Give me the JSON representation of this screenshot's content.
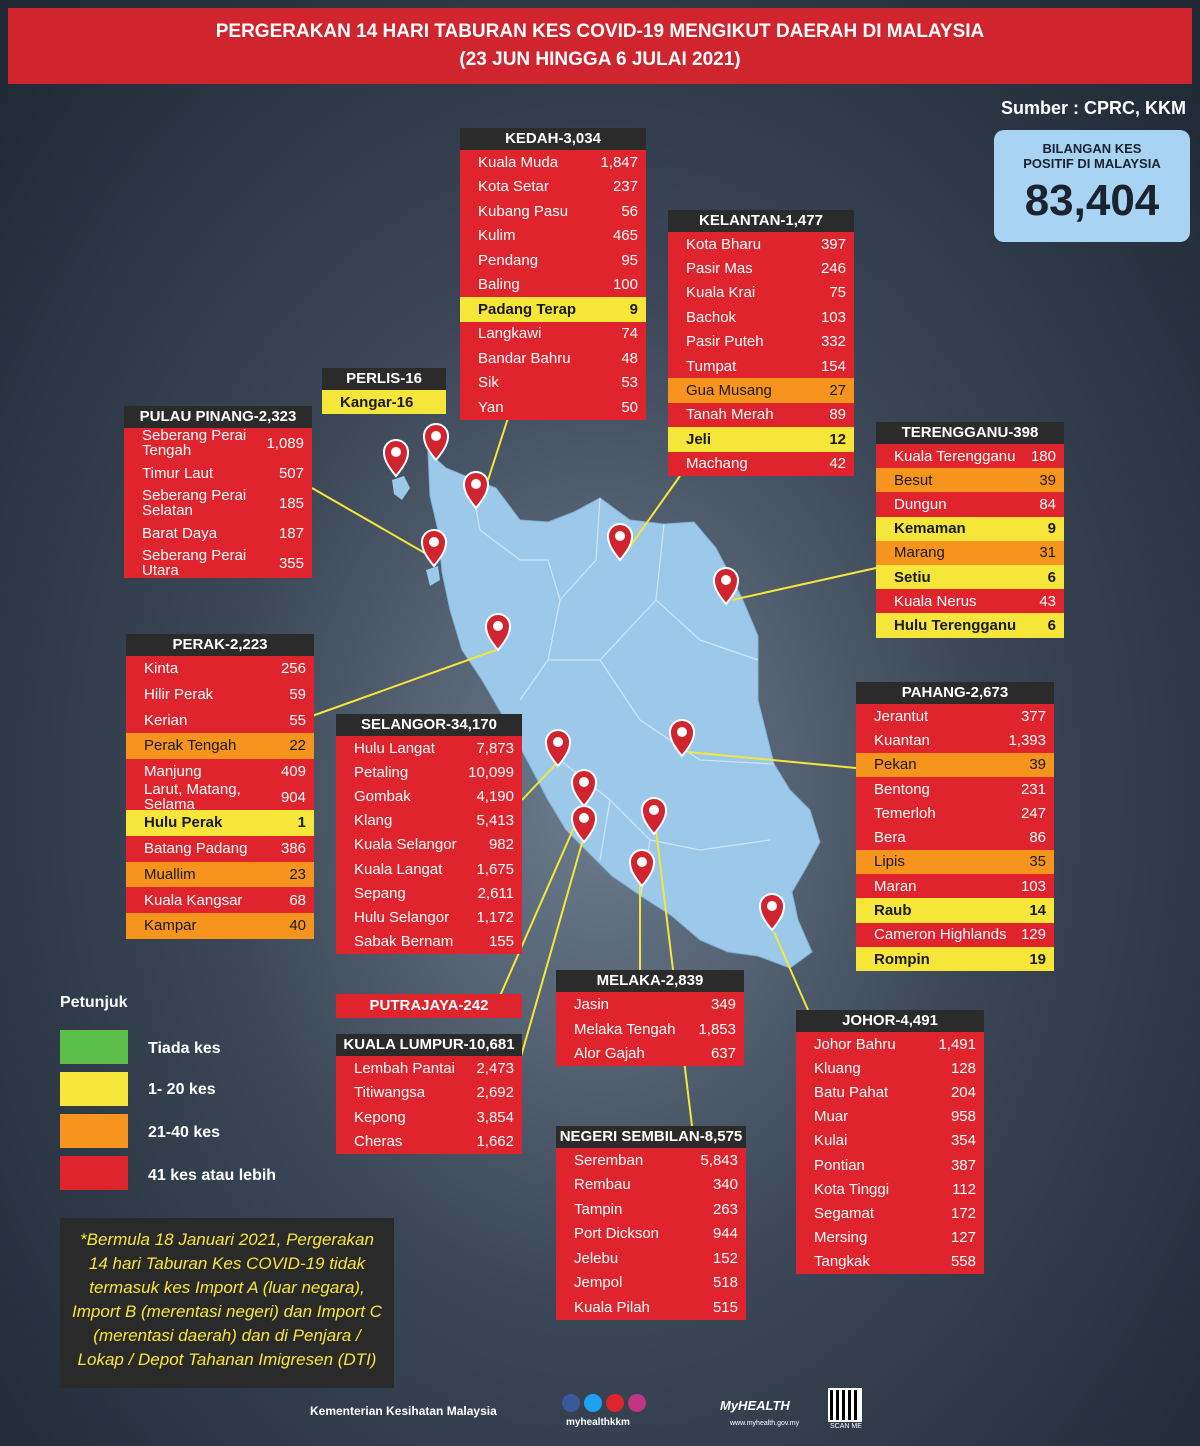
{
  "header": {
    "line1": "PERGERAKAN 14 HARI TABURAN KES COVID-19 MENGIKUT DAERAH DI MALAYSIA",
    "line2": "(23 JUN HINGGA 6 JULAI 2021)"
  },
  "source": "Sumber : CPRC, KKM",
  "total": {
    "label1": "BILANGAN KES",
    "label2": "POSITIF DI MALAYSIA",
    "value": "83,404"
  },
  "colors": {
    "red": "#e0242d",
    "yellow": "#f6e63a",
    "orange": "#f7941e",
    "green": "#5cbf4a",
    "map": "#9cc9ea",
    "header": "#d0242e"
  },
  "states": {
    "kedah": {
      "title": "KEDAH-3,034",
      "rows": [
        {
          "name": "Kuala Muda",
          "value": "1,847",
          "level": "red"
        },
        {
          "name": "Kota Setar",
          "value": "237",
          "level": "red"
        },
        {
          "name": "Kubang Pasu",
          "value": "56",
          "level": "red"
        },
        {
          "name": "Kulim",
          "value": "465",
          "level": "red"
        },
        {
          "name": "Pendang",
          "value": "95",
          "level": "red"
        },
        {
          "name": "Baling",
          "value": "100",
          "level": "red"
        },
        {
          "name": "Padang Terap",
          "value": "9",
          "level": "yellow"
        },
        {
          "name": "Langkawi",
          "value": "74",
          "level": "red"
        },
        {
          "name": "Bandar Bahru",
          "value": "48",
          "level": "red"
        },
        {
          "name": "Sik",
          "value": "53",
          "level": "red"
        },
        {
          "name": "Yan",
          "value": "50",
          "level": "red"
        }
      ]
    },
    "kelantan": {
      "title": "KELANTAN-1,477",
      "rows": [
        {
          "name": "Kota Bharu",
          "value": "397",
          "level": "red"
        },
        {
          "name": "Pasir Mas",
          "value": "246",
          "level": "red"
        },
        {
          "name": "Kuala Krai",
          "value": "75",
          "level": "red"
        },
        {
          "name": "Bachok",
          "value": "103",
          "level": "red"
        },
        {
          "name": "Pasir Puteh",
          "value": "332",
          "level": "red"
        },
        {
          "name": "Tumpat",
          "value": "154",
          "level": "red"
        },
        {
          "name": "Gua Musang",
          "value": "27",
          "level": "orange"
        },
        {
          "name": "Tanah Merah",
          "value": "89",
          "level": "red"
        },
        {
          "name": "Jeli",
          "value": "12",
          "level": "yellow"
        },
        {
          "name": "Machang",
          "value": "42",
          "level": "red"
        }
      ]
    },
    "perlis": {
      "title": "PERLIS-16",
      "rows": [
        {
          "name": "Kangar-16",
          "value": "",
          "level": "yellow"
        }
      ]
    },
    "penang": {
      "title": "PULAU PINANG-2,323",
      "rows": [
        {
          "name": "Seberang Perai Tengah",
          "value": "1,089",
          "level": "red"
        },
        {
          "name": "Timur Laut",
          "value": "507",
          "level": "red"
        },
        {
          "name": "Seberang Perai Selatan",
          "value": "185",
          "level": "red"
        },
        {
          "name": "Barat Daya",
          "value": "187",
          "level": "red"
        },
        {
          "name": "Seberang Perai Utara",
          "value": "355",
          "level": "red"
        }
      ]
    },
    "terengganu": {
      "title": "TERENGGANU-398",
      "rows": [
        {
          "name": "Kuala Terengganu",
          "value": "180",
          "level": "red"
        },
        {
          "name": "Besut",
          "value": "39",
          "level": "orange"
        },
        {
          "name": "Dungun",
          "value": "84",
          "level": "red"
        },
        {
          "name": "Kemaman",
          "value": "9",
          "level": "yellow"
        },
        {
          "name": "Marang",
          "value": "31",
          "level": "orange"
        },
        {
          "name": "Setiu",
          "value": "6",
          "level": "yellow"
        },
        {
          "name": "Kuala Nerus",
          "value": "43",
          "level": "red"
        },
        {
          "name": "Hulu Terengganu",
          "value": "6",
          "level": "yellow"
        }
      ]
    },
    "perak": {
      "title": "PERAK-2,223",
      "rows": [
        {
          "name": "Kinta",
          "value": "256",
          "level": "red"
        },
        {
          "name": "Hilir Perak",
          "value": "59",
          "level": "red"
        },
        {
          "name": "Kerian",
          "value": "55",
          "level": "red"
        },
        {
          "name": "Perak Tengah",
          "value": "22",
          "level": "orange"
        },
        {
          "name": "Manjung",
          "value": "409",
          "level": "red"
        },
        {
          "name": "Larut, Matang, Selama",
          "value": "904",
          "level": "red"
        },
        {
          "name": "Hulu Perak",
          "value": "1",
          "level": "yellow"
        },
        {
          "name": "Batang Padang",
          "value": "386",
          "level": "red"
        },
        {
          "name": "Muallim",
          "value": "23",
          "level": "orange"
        },
        {
          "name": "Kuala Kangsar",
          "value": "68",
          "level": "red"
        },
        {
          "name": "Kampar",
          "value": "40",
          "level": "orange"
        }
      ]
    },
    "selangor": {
      "title": "SELANGOR-34,170",
      "rows": [
        {
          "name": "Hulu Langat",
          "value": "7,873",
          "level": "red"
        },
        {
          "name": "Petaling",
          "value": "10,099",
          "level": "red"
        },
        {
          "name": "Gombak",
          "value": "4,190",
          "level": "red"
        },
        {
          "name": "Klang",
          "value": "5,413",
          "level": "red"
        },
        {
          "name": "Kuala Selangor",
          "value": "982",
          "level": "red"
        },
        {
          "name": "Kuala Langat",
          "value": "1,675",
          "level": "red"
        },
        {
          "name": "Sepang",
          "value": "2,611",
          "level": "red"
        },
        {
          "name": "Hulu Selangor",
          "value": "1,172",
          "level": "red"
        },
        {
          "name": "Sabak Bernam",
          "value": "155",
          "level": "red"
        }
      ]
    },
    "pahang": {
      "title": "PAHANG-2,673",
      "rows": [
        {
          "name": "Jerantut",
          "value": "377",
          "level": "red"
        },
        {
          "name": "Kuantan",
          "value": "1,393",
          "level": "red"
        },
        {
          "name": "Pekan",
          "value": "39",
          "level": "orange"
        },
        {
          "name": "Bentong",
          "value": "231",
          "level": "red"
        },
        {
          "name": "Temerloh",
          "value": "247",
          "level": "red"
        },
        {
          "name": "Bera",
          "value": "86",
          "level": "red"
        },
        {
          "name": "Lipis",
          "value": "35",
          "level": "orange"
        },
        {
          "name": "Maran",
          "value": "103",
          "level": "red"
        },
        {
          "name": "Raub",
          "value": "14",
          "level": "yellow"
        },
        {
          "name": "Cameron Highlands",
          "value": "129",
          "level": "red"
        },
        {
          "name": "Rompin",
          "value": "19",
          "level": "yellow"
        }
      ]
    },
    "putrajaya": {
      "title": "PUTRAJAYA-242"
    },
    "kl": {
      "title": "KUALA LUMPUR-10,681",
      "rows": [
        {
          "name": "Lembah Pantai",
          "value": "2,473",
          "level": "red"
        },
        {
          "name": "Titiwangsa",
          "value": "2,692",
          "level": "red"
        },
        {
          "name": "Kepong",
          "value": "3,854",
          "level": "red"
        },
        {
          "name": "Cheras",
          "value": "1,662",
          "level": "red"
        }
      ]
    },
    "melaka": {
      "title": "MELAKA-2,839",
      "rows": [
        {
          "name": "Jasin",
          "value": "349",
          "level": "red"
        },
        {
          "name": "Melaka Tengah",
          "value": "1,853",
          "level": "red"
        },
        {
          "name": "Alor Gajah",
          "value": "637",
          "level": "red"
        }
      ]
    },
    "johor": {
      "title": "JOHOR-4,491",
      "rows": [
        {
          "name": "Johor Bahru",
          "value": "1,491",
          "level": "red"
        },
        {
          "name": "Kluang",
          "value": "128",
          "level": "red"
        },
        {
          "name": "Batu Pahat",
          "value": "204",
          "level": "red"
        },
        {
          "name": "Muar",
          "value": "958",
          "level": "red"
        },
        {
          "name": "Kulai",
          "value": "354",
          "level": "red"
        },
        {
          "name": "Pontian",
          "value": "387",
          "level": "red"
        },
        {
          "name": "Kota Tinggi",
          "value": "112",
          "level": "red"
        },
        {
          "name": "Segamat",
          "value": "172",
          "level": "red"
        },
        {
          "name": "Mersing",
          "value": "127",
          "level": "red"
        },
        {
          "name": "Tangkak",
          "value": "558",
          "level": "red"
        }
      ]
    },
    "ns": {
      "title": "NEGERI SEMBILAN-8,575",
      "rows": [
        {
          "name": "Seremban",
          "value": "5,843",
          "level": "red"
        },
        {
          "name": "Rembau",
          "value": "340",
          "level": "red"
        },
        {
          "name": "Tampin",
          "value": "263",
          "level": "red"
        },
        {
          "name": "Port Dickson",
          "value": "944",
          "level": "red"
        },
        {
          "name": "Jelebu",
          "value": "152",
          "level": "red"
        },
        {
          "name": "Jempol",
          "value": "518",
          "level": "red"
        },
        {
          "name": "Kuala Pilah",
          "value": "515",
          "level": "red"
        }
      ]
    }
  },
  "legend": {
    "title": "Petunjuk",
    "items": [
      {
        "label": "Tiada kes",
        "color": "green"
      },
      {
        "label": "1- 20 kes",
        "color": "yellow"
      },
      {
        "label": "21-40 kes",
        "color": "orange"
      },
      {
        "label": "41 kes atau lebih",
        "color": "red"
      }
    ]
  },
  "note": "*Bermula 18 Januari 2021, Pergerakan 14 hari Taburan Kes COVID-19 tidak termasuk kes Import A (luar negara), Import B (merentasi negeri) dan Import C (merentasi daerah) dan di Penjara / Lokap / Depot Tahanan Imigresen (DTI)",
  "footer": {
    "org": "Kementerian Kesihatan Malaysia",
    "social": "myhealthkkm",
    "brand": "MyHEALTH",
    "site": "www.myhealth.gov.my",
    "qr": "SCAN ME"
  },
  "pin_icon": "map-pin-icon"
}
